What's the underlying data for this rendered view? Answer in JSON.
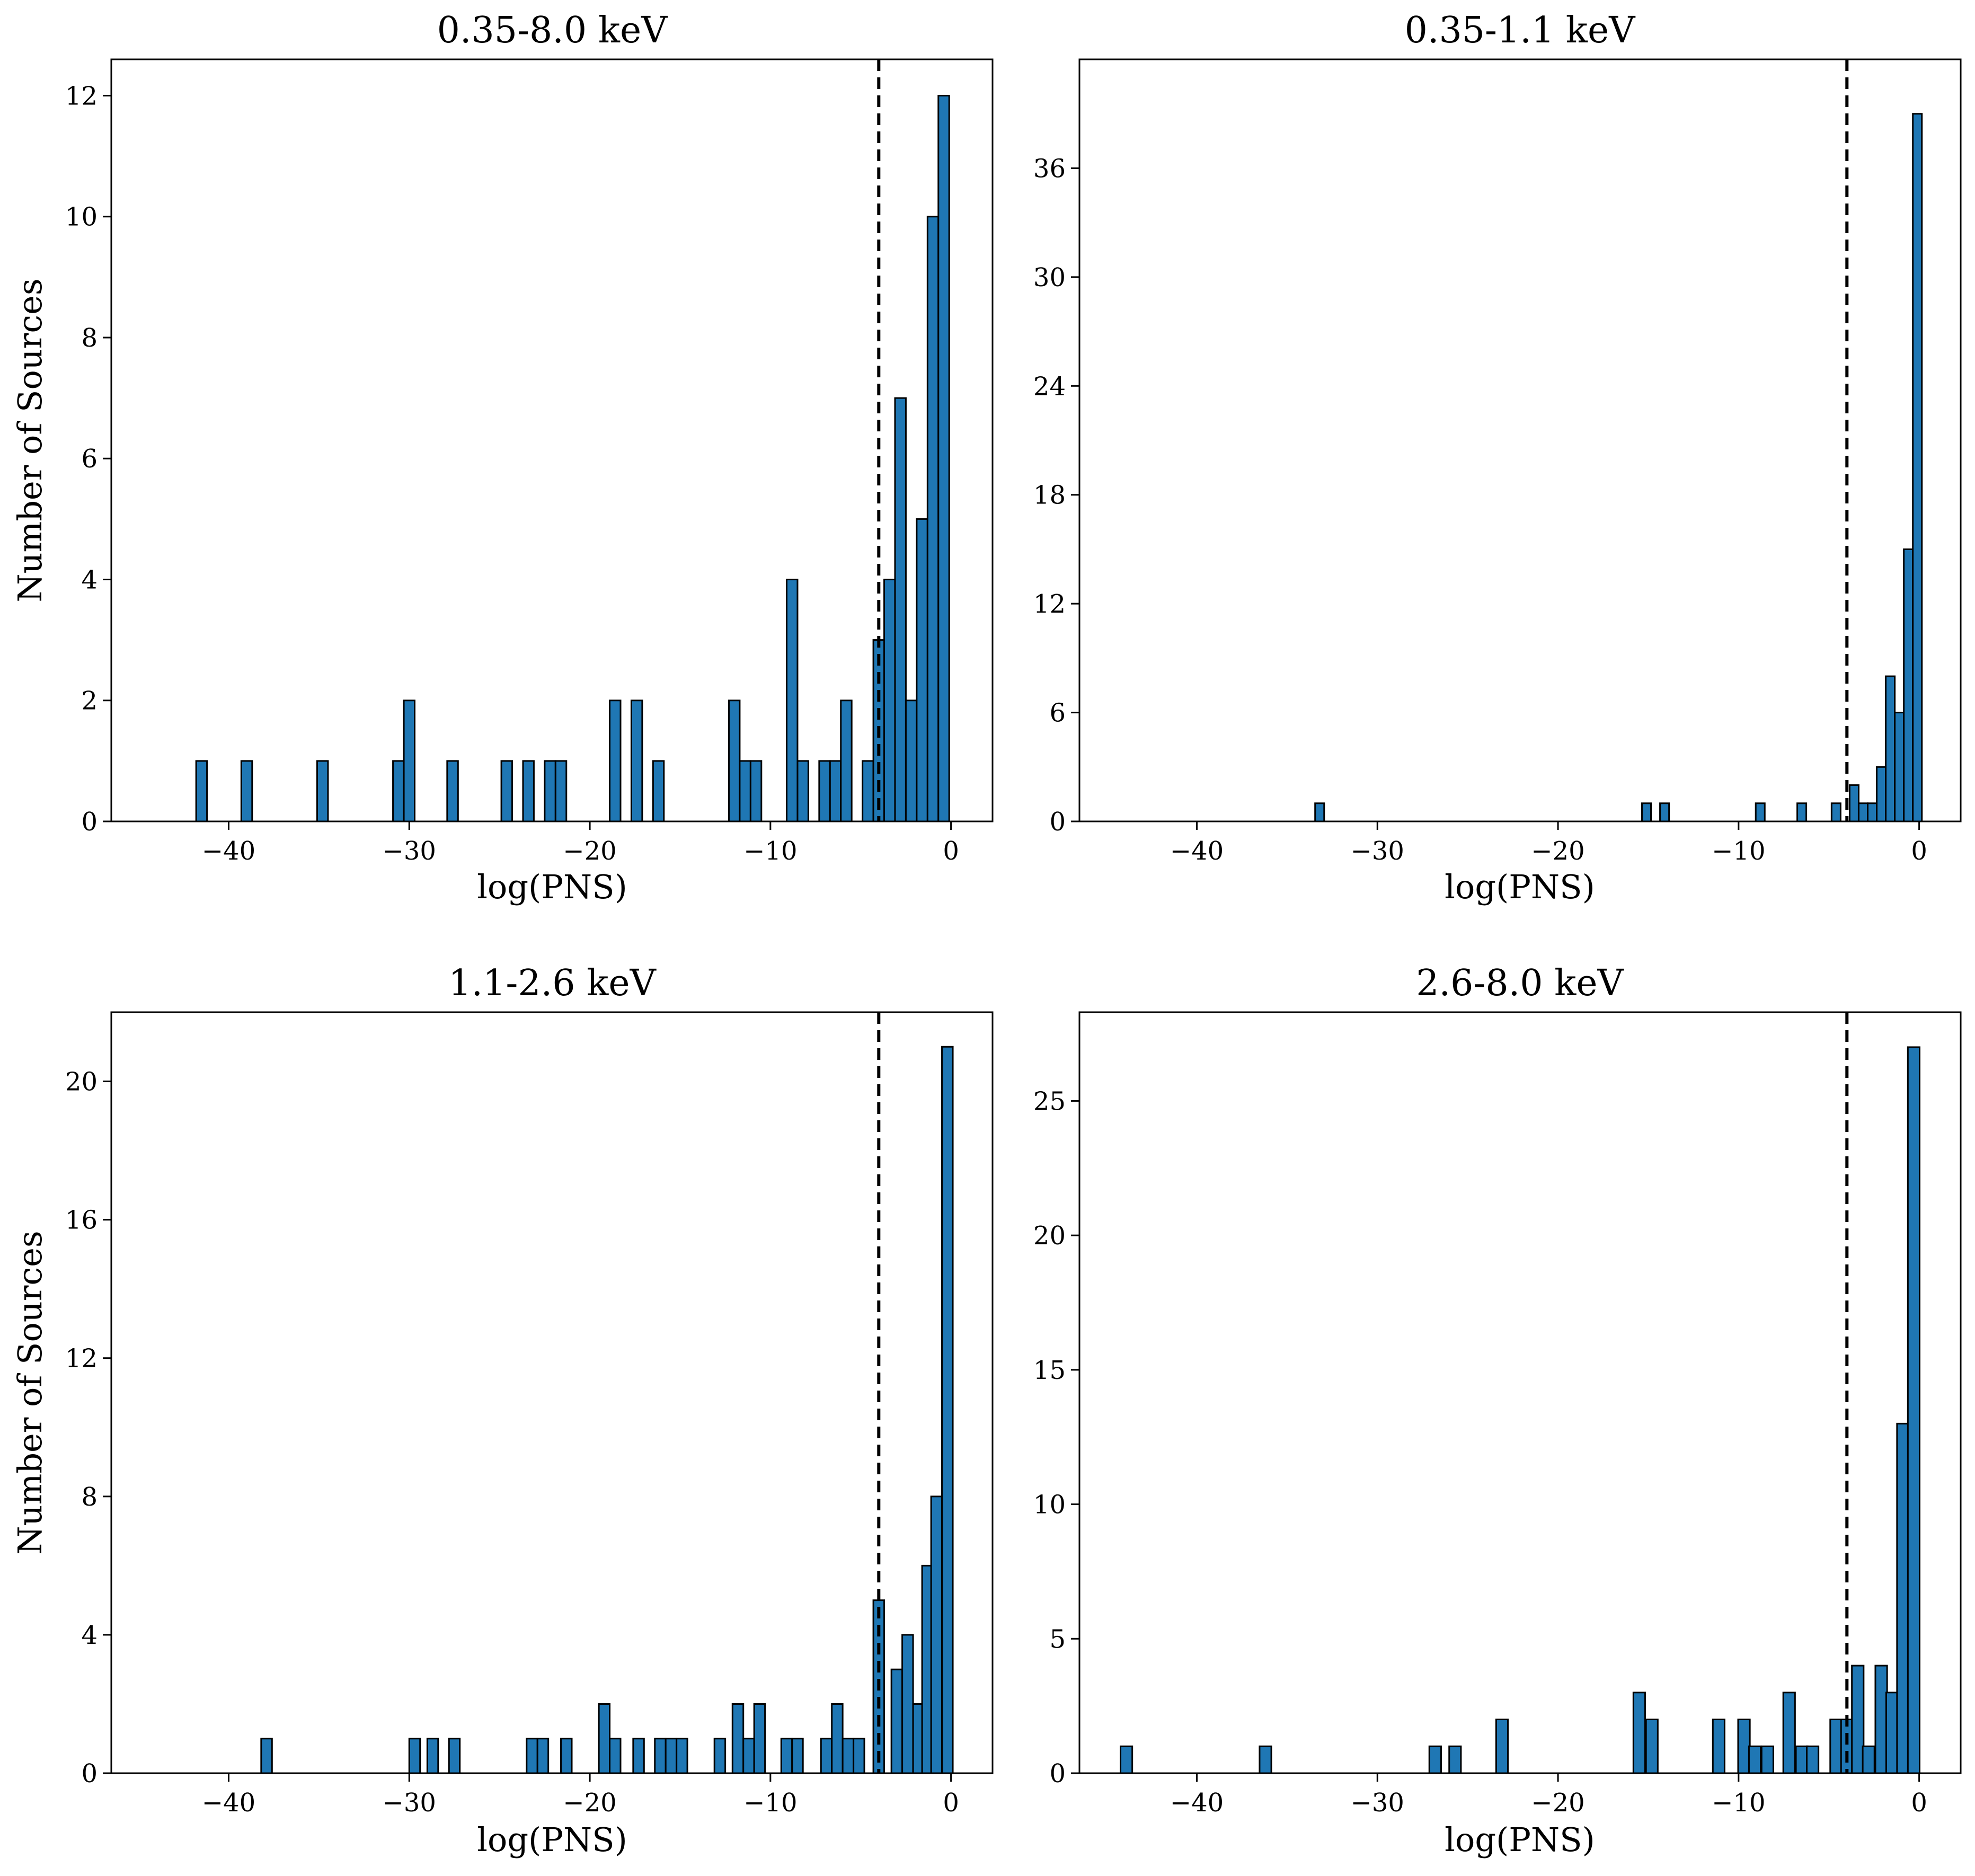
{
  "figure": {
    "style": {
      "bar_color": "#1f77b4",
      "edge_color": "#000000",
      "threshold_color": "#000000"
    }
  },
  "chart_data": [
    {
      "type": "bar",
      "title": "0.35-8.0 keV",
      "xlabel": "log(PNS)",
      "ylabel": "Number of Sources",
      "xlim": [
        -46.5,
        2.3
      ],
      "ylim": [
        0,
        12.6
      ],
      "xticks": [
        -40,
        -30,
        -20,
        -10,
        0
      ],
      "xtick_labels": [
        "−40",
        "−30",
        "−20",
        "−10",
        "0"
      ],
      "yticks": [
        0,
        2,
        4,
        6,
        8,
        10,
        12
      ],
      "ytick_labels": [
        "0",
        "2",
        "4",
        "6",
        "8",
        "10",
        "12"
      ],
      "threshold_x": -4.0,
      "bin_width": 0.6,
      "bins": [
        {
          "x": -41.5,
          "count": 1
        },
        {
          "x": -39.0,
          "count": 1
        },
        {
          "x": -34.8,
          "count": 1
        },
        {
          "x": -30.6,
          "count": 1
        },
        {
          "x": -30.0,
          "count": 2
        },
        {
          "x": -27.6,
          "count": 1
        },
        {
          "x": -24.6,
          "count": 1
        },
        {
          "x": -23.4,
          "count": 1
        },
        {
          "x": -22.2,
          "count": 1
        },
        {
          "x": -21.6,
          "count": 1
        },
        {
          "x": -18.6,
          "count": 2
        },
        {
          "x": -17.4,
          "count": 2
        },
        {
          "x": -16.2,
          "count": 1
        },
        {
          "x": -12.0,
          "count": 2
        },
        {
          "x": -11.4,
          "count": 1
        },
        {
          "x": -10.8,
          "count": 1
        },
        {
          "x": -8.8,
          "count": 4
        },
        {
          "x": -8.2,
          "count": 1
        },
        {
          "x": -7.0,
          "count": 1
        },
        {
          "x": -6.4,
          "count": 1
        },
        {
          "x": -5.8,
          "count": 2
        },
        {
          "x": -4.6,
          "count": 1
        },
        {
          "x": -4.0,
          "count": 3
        },
        {
          "x": -3.4,
          "count": 4
        },
        {
          "x": -2.8,
          "count": 7
        },
        {
          "x": -2.2,
          "count": 2
        },
        {
          "x": -1.6,
          "count": 5
        },
        {
          "x": -1.0,
          "count": 10
        },
        {
          "x": -0.4,
          "count": 12
        }
      ]
    },
    {
      "type": "bar",
      "title": "0.35-1.1 keV",
      "xlabel": "log(PNS)",
      "ylabel": "",
      "xlim": [
        -46.5,
        2.3
      ],
      "ylim": [
        0,
        42
      ],
      "xticks": [
        -40,
        -30,
        -20,
        -10,
        0
      ],
      "xtick_labels": [
        "−40",
        "−30",
        "−20",
        "−10",
        "0"
      ],
      "yticks": [
        0,
        6,
        12,
        18,
        24,
        30,
        36
      ],
      "ytick_labels": [
        "0",
        "6",
        "12",
        "18",
        "24",
        "30",
        "36"
      ],
      "threshold_x": -4.0,
      "bin_width": 0.5,
      "bins": [
        {
          "x": -33.2,
          "count": 1
        },
        {
          "x": -15.1,
          "count": 1
        },
        {
          "x": -14.1,
          "count": 1
        },
        {
          "x": -8.8,
          "count": 1
        },
        {
          "x": -6.5,
          "count": 1
        },
        {
          "x": -4.6,
          "count": 1
        },
        {
          "x": -3.6,
          "count": 2
        },
        {
          "x": -3.1,
          "count": 1
        },
        {
          "x": -2.6,
          "count": 1
        },
        {
          "x": -2.1,
          "count": 3
        },
        {
          "x": -1.6,
          "count": 8
        },
        {
          "x": -1.1,
          "count": 6
        },
        {
          "x": -0.6,
          "count": 15
        },
        {
          "x": -0.1,
          "count": 39
        }
      ]
    },
    {
      "type": "bar",
      "title": "1.1-2.6 keV",
      "xlabel": "log(PNS)",
      "ylabel": "Number of Sources",
      "xlim": [
        -46.5,
        2.3
      ],
      "ylim": [
        0,
        22
      ],
      "xticks": [
        -40,
        -30,
        -20,
        -10,
        0
      ],
      "xtick_labels": [
        "−40",
        "−30",
        "−20",
        "−10",
        "0"
      ],
      "yticks": [
        0,
        4,
        8,
        12,
        16,
        20
      ],
      "ytick_labels": [
        "0",
        "4",
        "8",
        "12",
        "16",
        "20"
      ],
      "threshold_x": -4.0,
      "bin_width": 0.6,
      "bins": [
        {
          "x": -37.9,
          "count": 1
        },
        {
          "x": -29.7,
          "count": 1
        },
        {
          "x": -28.7,
          "count": 1
        },
        {
          "x": -27.5,
          "count": 1
        },
        {
          "x": -23.2,
          "count": 1
        },
        {
          "x": -22.6,
          "count": 1
        },
        {
          "x": -21.3,
          "count": 1
        },
        {
          "x": -19.2,
          "count": 2
        },
        {
          "x": -18.6,
          "count": 1
        },
        {
          "x": -17.3,
          "count": 1
        },
        {
          "x": -16.1,
          "count": 1
        },
        {
          "x": -15.5,
          "count": 1
        },
        {
          "x": -14.9,
          "count": 1
        },
        {
          "x": -12.8,
          "count": 1
        },
        {
          "x": -11.8,
          "count": 2
        },
        {
          "x": -11.2,
          "count": 1
        },
        {
          "x": -10.6,
          "count": 2
        },
        {
          "x": -9.1,
          "count": 1
        },
        {
          "x": -8.5,
          "count": 1
        },
        {
          "x": -6.9,
          "count": 1
        },
        {
          "x": -6.3,
          "count": 2
        },
        {
          "x": -5.7,
          "count": 1
        },
        {
          "x": -5.1,
          "count": 1
        },
        {
          "x": -4.0,
          "count": 5
        },
        {
          "x": -3.0,
          "count": 3
        },
        {
          "x": -2.4,
          "count": 4
        },
        {
          "x": -1.8,
          "count": 2
        },
        {
          "x": -1.3,
          "count": 6
        },
        {
          "x": -0.8,
          "count": 8
        },
        {
          "x": -0.2,
          "count": 21
        }
      ]
    },
    {
      "type": "bar",
      "title": "2.6-8.0 keV",
      "xlabel": "log(PNS)",
      "ylabel": "",
      "xlim": [
        -46.5,
        2.3
      ],
      "ylim": [
        0,
        28.3
      ],
      "xticks": [
        -40,
        -30,
        -20,
        -10,
        0
      ],
      "xtick_labels": [
        "−40",
        "−30",
        "−20",
        "−10",
        "0"
      ],
      "yticks": [
        0,
        5,
        10,
        15,
        20,
        25
      ],
      "ytick_labels": [
        "0",
        "5",
        "10",
        "15",
        "20",
        "25"
      ],
      "threshold_x": -4.0,
      "bin_width": 0.65,
      "bins": [
        {
          "x": -43.9,
          "count": 1
        },
        {
          "x": -36.2,
          "count": 1
        },
        {
          "x": -26.8,
          "count": 1
        },
        {
          "x": -25.7,
          "count": 1
        },
        {
          "x": -23.1,
          "count": 2
        },
        {
          "x": -15.5,
          "count": 3
        },
        {
          "x": -14.8,
          "count": 2
        },
        {
          "x": -11.1,
          "count": 2
        },
        {
          "x": -9.7,
          "count": 2
        },
        {
          "x": -9.1,
          "count": 1
        },
        {
          "x": -8.4,
          "count": 1
        },
        {
          "x": -7.2,
          "count": 3
        },
        {
          "x": -6.5,
          "count": 1
        },
        {
          "x": -5.9,
          "count": 1
        },
        {
          "x": -4.6,
          "count": 2
        },
        {
          "x": -4.0,
          "count": 2
        },
        {
          "x": -3.4,
          "count": 4
        },
        {
          "x": -2.8,
          "count": 1
        },
        {
          "x": -2.1,
          "count": 4
        },
        {
          "x": -1.5,
          "count": 3
        },
        {
          "x": -0.9,
          "count": 13
        },
        {
          "x": -0.3,
          "count": 27
        }
      ]
    }
  ]
}
